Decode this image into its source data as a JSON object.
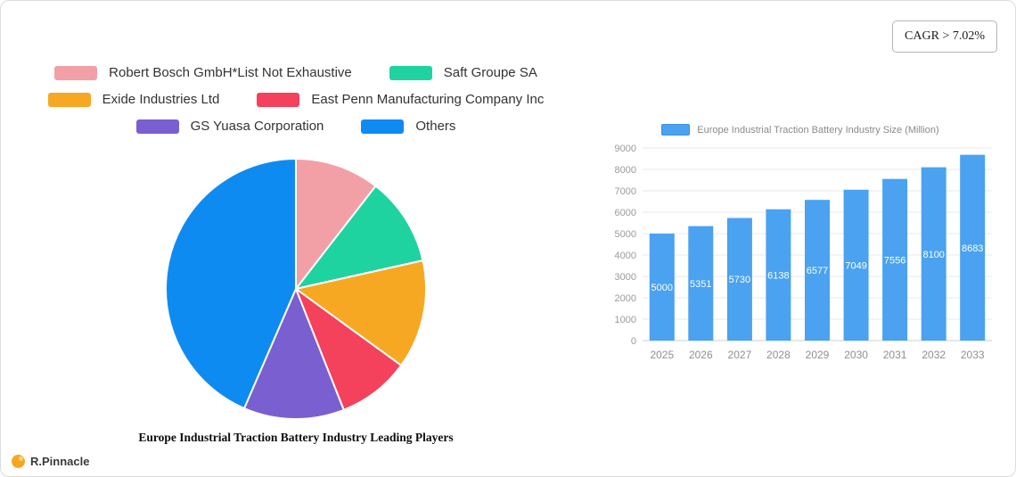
{
  "cagr_badge": {
    "label": "CAGR > 7.02%"
  },
  "brand": {
    "name": "R.Pinnacle",
    "icon_color": "#f6a722"
  },
  "chart_data": [
    {
      "type": "pie",
      "title": "Europe Industrial Traction Battery Industry Leading Players",
      "labels": [
        "Robert Bosch GmbH*List Not Exhaustive",
        "Saft Groupe SA",
        "Exide Industries Ltd",
        "East Penn Manufacturing Company Inc",
        "GS Yuasa Corporation",
        "Others"
      ],
      "values": [
        10.5,
        11,
        13.5,
        9,
        12.5,
        43.5
      ],
      "colors": [
        "#f2a0a6",
        "#1fd3a0",
        "#f7a823",
        "#f4415c",
        "#7a5fd0",
        "#0e8bf1"
      ],
      "legend_rows": [
        [
          0,
          1
        ],
        [
          2,
          3
        ],
        [
          4,
          5
        ]
      ],
      "legend_position": "top",
      "start_angle_deg": -90,
      "direction": "clockwise"
    },
    {
      "type": "bar",
      "legend_label": "Europe Industrial Traction Battery Industry Size (Million)",
      "categories": [
        "2025",
        "2026",
        "2027",
        "2028",
        "2029",
        "2030",
        "2031",
        "2032",
        "2033"
      ],
      "values": [
        5000,
        5351,
        5730,
        6138,
        6577,
        7049,
        7556,
        8100,
        8683
      ],
      "ylim": [
        0,
        9000
      ],
      "ytick_step": 1000,
      "bar_color": "#4aa2f0",
      "value_label_color": "#ffffff",
      "grid": true,
      "legend_position": "top"
    }
  ]
}
